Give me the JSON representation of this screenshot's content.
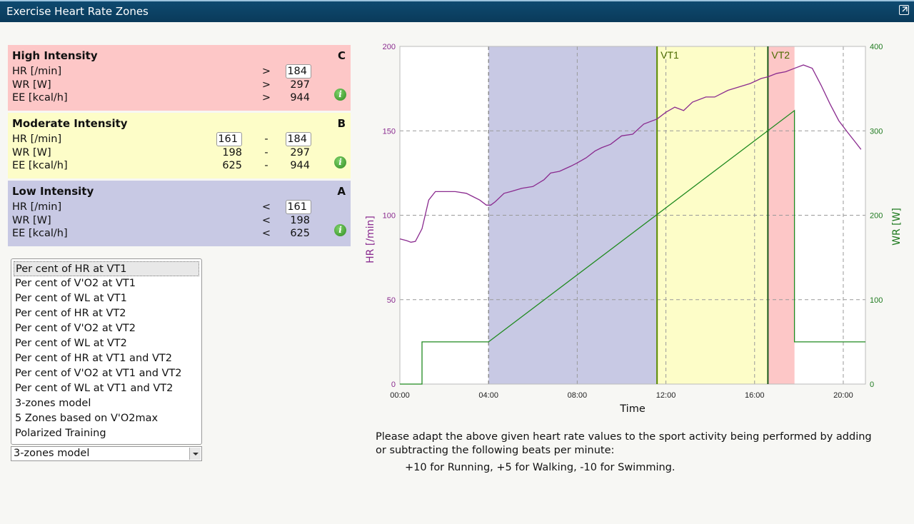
{
  "window": {
    "title": "Exercise Heart Rate Zones"
  },
  "zones": {
    "high": {
      "name": "High Intensity",
      "letter": "C",
      "hr_label": "HR [/min]",
      "hr_op": ">",
      "hr_value": "184",
      "wr_label": "WR [W]",
      "wr_op": ">",
      "wr_value": "297",
      "ee_label": "EE [kcal/h]",
      "ee_op": ">",
      "ee_value": "944",
      "color": "#fdc7c7"
    },
    "moderate": {
      "name": "Moderate Intensity",
      "letter": "B",
      "hr_label": "HR [/min]",
      "hr_low": "161",
      "hr_sep": "-",
      "hr_high": "184",
      "wr_label": "WR [W]",
      "wr_low": "198",
      "wr_sep": "-",
      "wr_high": "297",
      "ee_label": "EE [kcal/h]",
      "ee_low": "625",
      "ee_sep": "-",
      "ee_high": "944",
      "color": "#fdfdc8"
    },
    "low": {
      "name": "Low Intensity",
      "letter": "A",
      "hr_label": "HR [/min]",
      "hr_op": "<",
      "hr_value": "161",
      "wr_label": "WR [W]",
      "wr_op": "<",
      "wr_value": "198",
      "ee_label": "EE [kcal/h]",
      "ee_op": "<",
      "ee_value": "625",
      "color": "#c8c9e4"
    },
    "info_icon": "info-icon"
  },
  "model_list": {
    "items": [
      "Per cent of HR at VT1",
      "Per cent of V'O2 at VT1",
      "Per cent of WL at VT1",
      "Per cent of HR at VT2",
      "Per cent of V'O2 at VT2",
      "Per cent of WL at VT2",
      "Per cent of HR at VT1 and VT2",
      "Per cent of V'O2 at VT1 and VT2",
      "Per cent of WL at VT1 and VT2",
      "3-zones model",
      "5 Zones based on V'O2max",
      "Polarized Training"
    ],
    "selected_index": 0
  },
  "model_select": {
    "value": "3-zones model"
  },
  "chart_data": {
    "type": "line",
    "xlabel": "Time",
    "ylabel_left": "HR [/min]",
    "ylabel_right": "WR [W]",
    "x_unit": "minutes",
    "xlim": [
      0,
      21
    ],
    "ylim_left": [
      0,
      200
    ],
    "ylim_right": [
      0,
      400
    ],
    "x_ticks": [
      "00:00",
      "04:00",
      "08:00",
      "12:00",
      "16:00",
      "20:00"
    ],
    "y_ticks_left": [
      "0",
      "50",
      "100",
      "150",
      "200"
    ],
    "y_ticks_right": [
      "0",
      "100",
      "200",
      "300",
      "400"
    ],
    "grid": true,
    "bands": [
      {
        "from": 4.0,
        "to": 11.6,
        "color": "#c8c9e4"
      },
      {
        "from": 11.6,
        "to": 16.6,
        "color": "#fdfdc8"
      },
      {
        "from": 16.6,
        "to": 17.8,
        "color": "#fdc7c7"
      }
    ],
    "vlines": [
      {
        "label": "VT1",
        "x": 11.6
      },
      {
        "label": "VT2",
        "x": 16.6
      }
    ],
    "series": [
      {
        "name": "HR [/min]",
        "axis": "left",
        "color": "#8a2b8f",
        "x": [
          0,
          0.3,
          0.5,
          0.7,
          1.0,
          1.3,
          1.6,
          2.0,
          2.5,
          3.0,
          3.3,
          3.6,
          3.9,
          4.1,
          4.3,
          4.7,
          5.0,
          5.5,
          6.0,
          6.5,
          6.8,
          7.2,
          7.7,
          8.0,
          8.4,
          8.8,
          9.1,
          9.5,
          10.0,
          10.5,
          11.0,
          11.6,
          12.0,
          12.4,
          12.8,
          13.2,
          13.8,
          14.2,
          14.8,
          15.3,
          15.8,
          16.3,
          16.6,
          17.0,
          17.4,
          17.8,
          18.2,
          18.6,
          19.0,
          19.4,
          19.8,
          20.2,
          20.5,
          20.8
        ],
        "y": [
          86,
          85,
          84,
          84.5,
          92,
          109,
          114,
          114,
          114,
          113,
          111,
          109,
          106,
          106,
          108,
          113,
          114,
          116,
          117,
          121,
          125,
          126,
          129,
          131,
          134,
          138,
          140,
          142,
          147,
          148,
          154,
          157,
          161,
          164,
          162,
          167,
          170,
          170,
          174,
          176,
          178,
          181,
          182,
          184,
          185,
          187,
          189,
          187,
          177,
          166,
          156,
          149,
          144,
          139
        ]
      },
      {
        "name": "WR [W]",
        "axis": "right",
        "color": "#1f8a1f",
        "x": [
          0,
          1.0,
          1.0,
          4.0,
          17.8,
          17.8,
          21.0
        ],
        "y": [
          0,
          0,
          50,
          50,
          324,
          50,
          50
        ]
      }
    ]
  },
  "note": {
    "line1": "Please adapt the above given heart rate values to the sport activity being performed by adding",
    "line2": "or subtracting the following beats per minute:",
    "line3": "+10 for Running, +5 for Walking, -10 for Swimming."
  }
}
